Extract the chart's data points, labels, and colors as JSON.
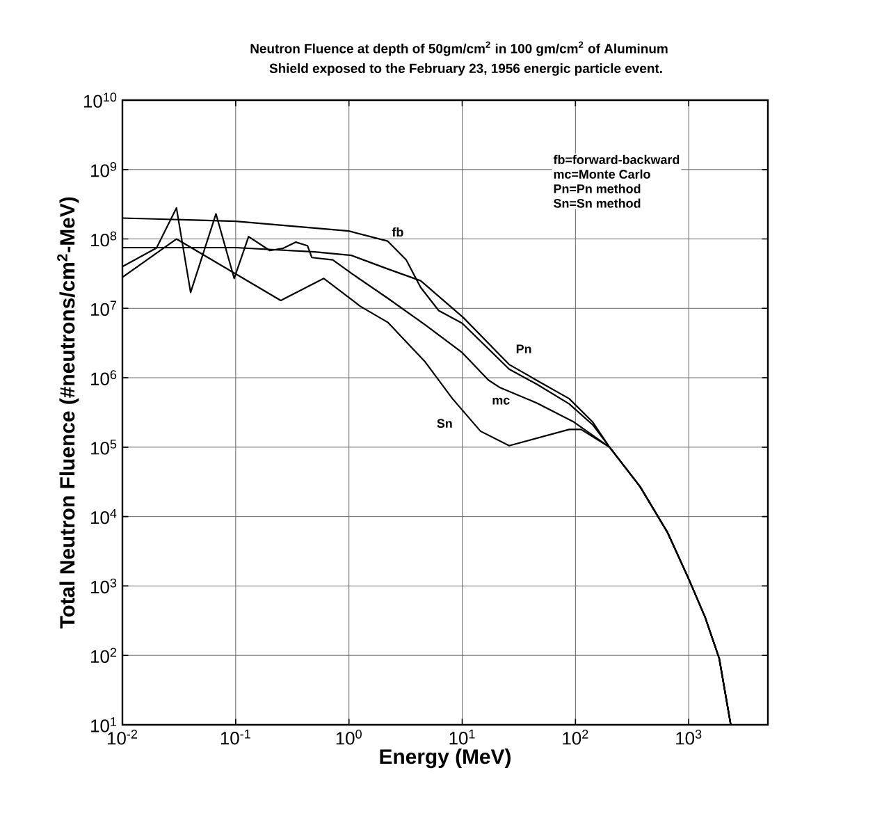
{
  "chart_data": {
    "type": "line",
    "title": "Neutron Fluence at depth of 50gm/cm$^{2}$ in 100 gm/cm$^{2}$ of Aluminum",
    "subtitle": "Shield exposed to the February 23, 1956 energic particle event.",
    "xlabel": "Energy (MeV)",
    "ylabel": "Total Neutron Fluence (#neutrons/cm$^{2}$-MeV)",
    "log": "xy",
    "grid": true,
    "marker": "none",
    "line_style": "solid",
    "xlim": [
      0.01,
      5000
    ],
    "ylim": [
      10,
      10000000000
    ],
    "xticks": [
      {
        "value": 0.01,
        "label": "10$^{-2}$"
      },
      {
        "value": 0.1,
        "label": "10$^{-1}$"
      },
      {
        "value": 1,
        "label": "10$^{0}$"
      },
      {
        "value": 10,
        "label": "10$^{1}$"
      },
      {
        "value": 100,
        "label": "10$^{2}$"
      },
      {
        "value": 1000,
        "label": "10$^{3}$"
      }
    ],
    "yticks": [
      {
        "value": 10,
        "label": "10$^{1}$"
      },
      {
        "value": 100,
        "label": "10$^{2}$"
      },
      {
        "value": 1000,
        "label": "10$^{3}$"
      },
      {
        "value": 10000,
        "label": "10$^{4}$"
      },
      {
        "value": 100000,
        "label": "10$^{5}$"
      },
      {
        "value": 1000000,
        "label": "10$^{6}$"
      },
      {
        "value": 10000000,
        "label": "10$^{7}$"
      },
      {
        "value": 100000000,
        "label": "10$^{8}$"
      },
      {
        "value": 1000000000,
        "label": "10$^{9}$"
      },
      {
        "value": 10000000000,
        "label": "10$^{10}$"
      }
    ],
    "series": [
      {
        "color": "#000000",
        "x": [
          0.01,
          0.1,
          1,
          2.2,
          3.2,
          4.3,
          6.2,
          10,
          26,
          46,
          88,
          142,
          200,
          372,
          650,
          1000,
          1400,
          1860,
          2350
        ],
        "values": [
          200000000,
          180000000,
          130000000,
          93000000,
          50000000,
          20000000,
          9300000,
          6100000,
          1330000,
          800000,
          420000,
          210000,
          100000,
          27000,
          5900,
          1260,
          350,
          90,
          10
        ]
      },
      {
        "color": "#000000",
        "x": [
          0.01,
          0.1,
          0.5,
          1.05,
          2.2,
          4.3,
          10.2,
          26,
          46,
          88,
          142,
          200,
          372,
          650,
          1000,
          1400,
          1860,
          2350
        ],
        "values": [
          75000000,
          75000000,
          65000000,
          58000000,
          37000000,
          25000000,
          7400000,
          1550000,
          910000,
          500000,
          230000,
          100000,
          27000,
          5900,
          1260,
          350,
          90,
          10
        ]
      },
      {
        "color": "#000000",
        "x": [
          0.01,
          0.02,
          0.03,
          0.04,
          0.067,
          0.097,
          0.13,
          0.2,
          0.26,
          0.34,
          0.43,
          0.47,
          0.72,
          1.05,
          2.2,
          4.7,
          10,
          17,
          21.6,
          46,
          97,
          200,
          372,
          650,
          1000,
          1400,
          1860,
          2350
        ],
        "values": [
          40000000,
          74000000,
          280000000,
          17000000,
          230000000,
          27000000,
          108000000,
          68000000,
          73000000,
          90000000,
          80000000,
          54000000,
          50000000,
          32000000,
          14000000,
          5800000,
          2300000,
          930000,
          720000,
          430000,
          230000,
          100000,
          27000,
          5900,
          1260,
          350,
          90,
          10
        ]
      },
      {
        "color": "#000000",
        "x": [
          0.01,
          0.03,
          0.25,
          0.6,
          1.26,
          2.2,
          4.7,
          8.2,
          14.5,
          26,
          88,
          112,
          200,
          372,
          650,
          1000,
          1400,
          1860,
          2350
        ],
        "values": [
          28000000,
          100000000,
          13000000,
          27000000,
          10700000,
          6300000,
          1700000,
          500000,
          170000,
          105000,
          180000,
          180000,
          100000,
          27000,
          5900,
          1260,
          350,
          90,
          10
        ]
      }
    ],
    "annotations": [
      {
        "text": "fb",
        "x": 2.7,
        "y": 126000000
      },
      {
        "text": "Pn",
        "x": 35,
        "y": 2600000
      },
      {
        "text": "mc",
        "x": 22,
        "y": 460000
      },
      {
        "text": "Sn",
        "x": 7,
        "y": 220000
      },
      "fb=forward-backward",
      "mc=Monte Carlo",
      "Pn=Pn method",
      "Sn=Sn method"
    ]
  }
}
